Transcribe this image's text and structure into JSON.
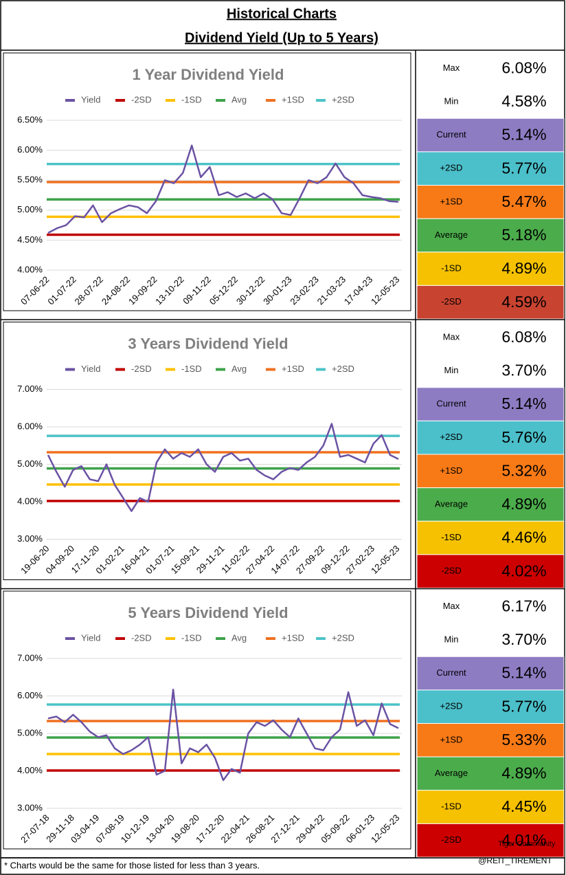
{
  "header": {
    "title": "Historical Charts",
    "subtitle": "Dividend Yield (Up to 5 Years)"
  },
  "footnote": "* Charts would be the same for those listed for less than 3 years.",
  "watermark": [
    "Tiger Community",
    "@REIT_TIREMENT"
  ],
  "chart_data": [
    {
      "type": "line",
      "title": "1 Year Dividend Yield",
      "grid": true,
      "categories": [
        "07-06-22",
        null,
        null,
        "01-07-22",
        null,
        null,
        "28-07-22",
        null,
        null,
        "24-08-22",
        null,
        null,
        "19-09-22",
        null,
        null,
        "13-10-22",
        null,
        null,
        "09-11-22",
        null,
        null,
        "05-12-22",
        null,
        null,
        "30-12-22",
        null,
        null,
        "30-01-23",
        null,
        null,
        "23-02-23",
        null,
        null,
        "21-03-23",
        null,
        null,
        "17-04-23",
        null,
        null,
        "12-05-23"
      ],
      "series": [
        {
          "name": "Yield",
          "color": "#6a52a3",
          "values": [
            4.62,
            4.7,
            4.75,
            4.9,
            4.88,
            5.08,
            4.8,
            4.95,
            5.02,
            5.08,
            5.05,
            4.95,
            5.15,
            5.5,
            5.45,
            5.62,
            6.08,
            5.55,
            5.72,
            5.25,
            5.3,
            5.22,
            5.28,
            5.2,
            5.28,
            5.18,
            4.95,
            4.92,
            5.2,
            5.5,
            5.45,
            5.55,
            5.78,
            5.55,
            5.45,
            5.25,
            5.22,
            5.2,
            5.15,
            5.14
          ]
        }
      ],
      "reference_lines": [
        {
          "name": "-2SD",
          "color": "#c00000",
          "value": 4.59
        },
        {
          "name": "-1SD",
          "color": "#ffc000",
          "value": 4.89
        },
        {
          "name": "Avg",
          "color": "#3da24a",
          "value": 5.18
        },
        {
          "name": "+1SD",
          "color": "#f07020",
          "value": 5.47
        },
        {
          "name": "+2SD",
          "color": "#4cc3c8",
          "value": 5.77
        }
      ],
      "ylim": [
        4.0,
        6.5
      ],
      "yticks": [
        {
          "value": 4.0,
          "label": "4.00%"
        },
        {
          "value": 4.5,
          "label": "4.50%"
        },
        {
          "value": 5.0,
          "label": "5.00%"
        },
        {
          "value": 5.5,
          "label": "5.50%"
        },
        {
          "value": 6.0,
          "label": "6.00%"
        },
        {
          "value": 6.5,
          "label": "6.50%"
        }
      ],
      "stats": [
        {
          "name": "Max",
          "text": "6.08%",
          "color": "#ffffff"
        },
        {
          "name": "Min",
          "text": "4.58%",
          "color": "#ffffff"
        },
        {
          "name": "Current",
          "text": "5.14%",
          "color": "#8e7cc3"
        },
        {
          "name": "+2SD",
          "text": "5.77%",
          "color": "#4bbfca"
        },
        {
          "name": "+1SD",
          "text": "5.47%",
          "color": "#f77a17"
        },
        {
          "name": "Average",
          "text": "5.18%",
          "color": "#4bac4b"
        },
        {
          "name": "-1SD",
          "text": "4.89%",
          "color": "#f5c100"
        },
        {
          "name": "-2SD",
          "text": "4.59%",
          "color": "#c84330"
        }
      ]
    },
    {
      "type": "line",
      "title": "3 Years Dividend Yield",
      "grid": true,
      "categories": [
        "19-06-20",
        null,
        null,
        "04-09-20",
        null,
        null,
        "17-11-20",
        null,
        null,
        "01-02-21",
        null,
        null,
        "16-04-21",
        null,
        null,
        "01-07-21",
        null,
        null,
        "15-09-21",
        null,
        null,
        "29-11-21",
        null,
        null,
        "11-02-22",
        null,
        null,
        "27-04-22",
        null,
        null,
        "14-07-22",
        null,
        null,
        "27-09-22",
        null,
        null,
        "09-12-22",
        null,
        null,
        "27-02-23",
        null,
        null,
        "12-05-23"
      ],
      "series": [
        {
          "name": "Yield",
          "color": "#6a52a3",
          "values": [
            5.25,
            4.8,
            4.4,
            4.85,
            4.95,
            4.6,
            4.55,
            5.0,
            4.45,
            4.1,
            3.75,
            4.1,
            4.0,
            5.05,
            5.4,
            5.15,
            5.3,
            5.2,
            5.4,
            5.0,
            4.8,
            5.2,
            5.3,
            5.1,
            5.15,
            4.85,
            4.7,
            4.6,
            4.8,
            4.9,
            4.85,
            5.05,
            5.2,
            5.5,
            6.08,
            5.2,
            5.25,
            5.15,
            5.05,
            5.55,
            5.78,
            5.25,
            5.14
          ]
        }
      ],
      "reference_lines": [
        {
          "name": "-2SD",
          "color": "#c00000",
          "value": 4.02
        },
        {
          "name": "-1SD",
          "color": "#ffc000",
          "value": 4.46
        },
        {
          "name": "Avg",
          "color": "#3da24a",
          "value": 4.89
        },
        {
          "name": "+1SD",
          "color": "#f07020",
          "value": 5.32
        },
        {
          "name": "+2SD",
          "color": "#4cc3c8",
          "value": 5.76
        }
      ],
      "ylim": [
        3.0,
        7.0
      ],
      "yticks": [
        {
          "value": 3.0,
          "label": "3.00%"
        },
        {
          "value": 4.0,
          "label": "4.00%"
        },
        {
          "value": 5.0,
          "label": "5.00%"
        },
        {
          "value": 6.0,
          "label": "6.00%"
        },
        {
          "value": 7.0,
          "label": "7.00%"
        }
      ],
      "stats": [
        {
          "name": "Max",
          "text": "6.08%",
          "color": "#ffffff"
        },
        {
          "name": "Min",
          "text": "3.70%",
          "color": "#ffffff"
        },
        {
          "name": "Current",
          "text": "5.14%",
          "color": "#8e7cc3"
        },
        {
          "name": "+2SD",
          "text": "5.76%",
          "color": "#4bbfca"
        },
        {
          "name": "+1SD",
          "text": "5.32%",
          "color": "#f77a17"
        },
        {
          "name": "Average",
          "text": "4.89%",
          "color": "#4bac4b"
        },
        {
          "name": "-1SD",
          "text": "4.46%",
          "color": "#f5c100"
        },
        {
          "name": "-2SD",
          "text": "4.02%",
          "color": "#cc0000"
        }
      ]
    },
    {
      "type": "line",
      "title": "5 Years Dividend Yield",
      "grid": true,
      "categories": [
        "27-07-18",
        null,
        null,
        "29-11-18",
        null,
        null,
        "03-04-19",
        null,
        null,
        "07-08-19",
        null,
        null,
        "10-12-19",
        null,
        null,
        "13-04-20",
        null,
        null,
        "19-08-20",
        null,
        null,
        "17-12-20",
        null,
        null,
        "22-04-21",
        null,
        null,
        "26-08-21",
        null,
        null,
        "27-12-21",
        null,
        null,
        "29-04-22",
        null,
        null,
        "05-09-22",
        null,
        null,
        "06-01-23",
        null,
        null,
        "12-05-23"
      ],
      "series": [
        {
          "name": "Yield",
          "color": "#6a52a3",
          "values": [
            5.4,
            5.45,
            5.3,
            5.5,
            5.3,
            5.05,
            4.9,
            4.95,
            4.6,
            4.45,
            4.55,
            4.7,
            4.9,
            3.9,
            4.0,
            6.17,
            4.2,
            4.6,
            4.5,
            4.7,
            4.35,
            3.75,
            4.05,
            3.95,
            5.0,
            5.3,
            5.2,
            5.35,
            5.1,
            4.9,
            5.4,
            5.0,
            4.6,
            4.55,
            4.9,
            5.1,
            6.1,
            5.2,
            5.35,
            4.95,
            5.8,
            5.25,
            5.14
          ]
        }
      ],
      "reference_lines": [
        {
          "name": "-2SD",
          "color": "#c00000",
          "value": 4.01
        },
        {
          "name": "-1SD",
          "color": "#ffc000",
          "value": 4.45
        },
        {
          "name": "Avg",
          "color": "#3da24a",
          "value": 4.89
        },
        {
          "name": "+1SD",
          "color": "#f07020",
          "value": 5.33
        },
        {
          "name": "+2SD",
          "color": "#4cc3c8",
          "value": 5.77
        }
      ],
      "ylim": [
        3.0,
        7.0
      ],
      "yticks": [
        {
          "value": 3.0,
          "label": "3.00%"
        },
        {
          "value": 4.0,
          "label": "4.00%"
        },
        {
          "value": 5.0,
          "label": "5.00%"
        },
        {
          "value": 6.0,
          "label": "6.00%"
        },
        {
          "value": 7.0,
          "label": "7.00%"
        }
      ],
      "stats": [
        {
          "name": "Max",
          "text": "6.17%",
          "color": "#ffffff"
        },
        {
          "name": "Min",
          "text": "3.70%",
          "color": "#ffffff"
        },
        {
          "name": "Current",
          "text": "5.14%",
          "color": "#8e7cc3"
        },
        {
          "name": "+2SD",
          "text": "5.77%",
          "color": "#4bbfca"
        },
        {
          "name": "+1SD",
          "text": "5.33%",
          "color": "#f77a17"
        },
        {
          "name": "Average",
          "text": "4.89%",
          "color": "#4bac4b"
        },
        {
          "name": "-1SD",
          "text": "4.45%",
          "color": "#f5c100"
        },
        {
          "name": "-2SD",
          "text": "4.01%",
          "color": "#cc0000"
        }
      ]
    }
  ]
}
